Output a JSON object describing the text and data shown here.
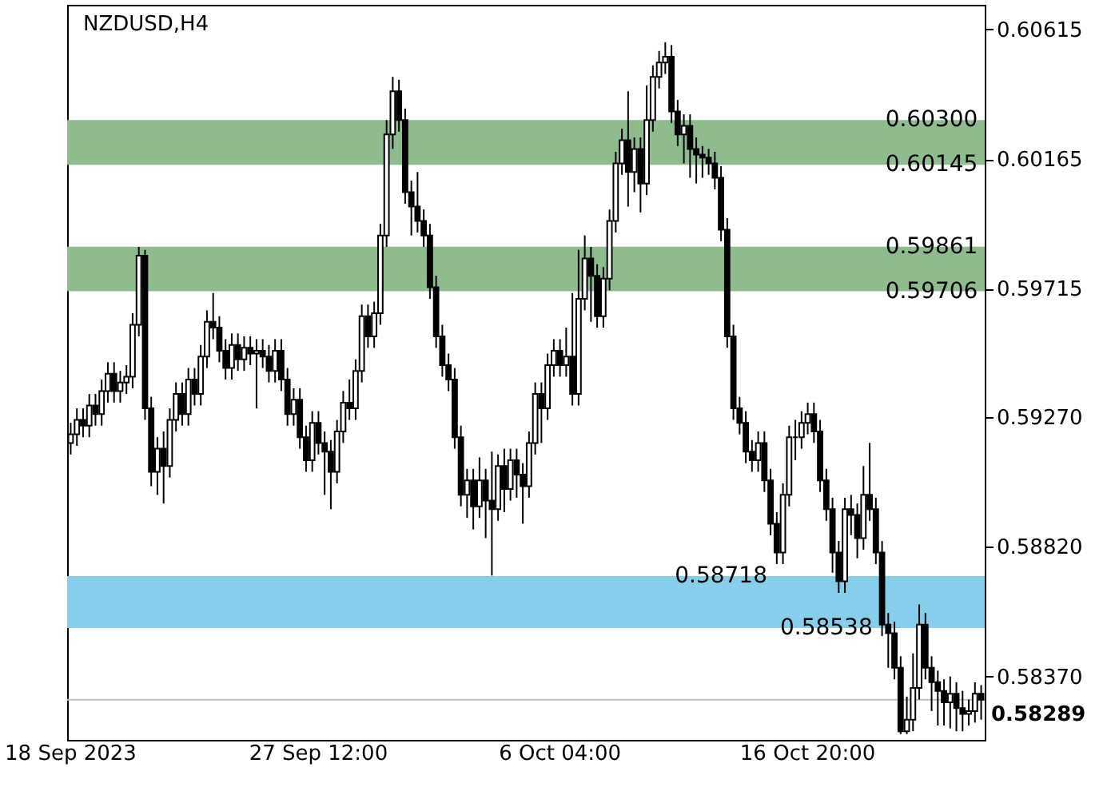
{
  "chart_data": {
    "type": "candlestick",
    "title": "NZDUSD,H4",
    "categories": [
      "18 Sep 2023",
      null,
      null,
      null,
      null,
      null,
      null,
      null,
      null,
      null,
      null,
      null,
      null,
      null,
      null,
      null,
      null,
      null,
      null,
      null,
      null,
      null,
      null,
      null,
      null,
      null,
      null,
      null,
      null,
      null,
      null,
      null,
      null,
      null,
      null,
      null,
      null,
      null,
      null,
      null,
      "27 Sep 12:00",
      null,
      null,
      null,
      null,
      null,
      null,
      null,
      null,
      null,
      null,
      null,
      null,
      null,
      null,
      null,
      null,
      null,
      null,
      null,
      null,
      null,
      null,
      null,
      null,
      null,
      null,
      null,
      null,
      null,
      null,
      null,
      null,
      null,
      null,
      null,
      null,
      null,
      null,
      "6 Oct 04:00",
      null,
      null,
      null,
      null,
      null,
      null,
      null,
      null,
      null,
      null,
      null,
      null,
      null,
      null,
      null,
      null,
      null,
      null,
      null,
      null,
      null,
      null,
      null,
      null,
      null,
      null,
      null,
      null,
      null,
      null,
      null,
      null,
      null,
      null,
      null,
      null,
      null,
      null,
      null,
      "16 Oct 20:00",
      null,
      null,
      null,
      null,
      null,
      null,
      null,
      null,
      null,
      null,
      null,
      null,
      null,
      null,
      null,
      null,
      null,
      null,
      null,
      null,
      null,
      null,
      null,
      null,
      null,
      null,
      null,
      null
    ],
    "ohlc": [
      [
        0.5918,
        0.5925,
        0.5914,
        0.5921
      ],
      [
        0.5921,
        0.593,
        0.5917,
        0.5926
      ],
      [
        0.5926,
        0.593,
        0.592,
        0.5924
      ],
      [
        0.5924,
        0.5935,
        0.592,
        0.5931
      ],
      [
        0.5931,
        0.5935,
        0.5924,
        0.5928
      ],
      [
        0.5928,
        0.594,
        0.5924,
        0.5936
      ],
      [
        0.5936,
        0.5946,
        0.5932,
        0.5942
      ],
      [
        0.5942,
        0.5946,
        0.5932,
        0.5936
      ],
      [
        0.5936,
        0.5943,
        0.5932,
        0.5939
      ],
      [
        0.5939,
        0.5945,
        0.5935,
        0.5941
      ],
      [
        0.5941,
        0.5963,
        0.5937,
        0.5959
      ],
      [
        0.5959,
        0.5986,
        0.5955,
        0.5983
      ],
      [
        0.5983,
        0.5985,
        0.5926,
        0.593
      ],
      [
        0.593,
        0.5934,
        0.5903,
        0.5908
      ],
      [
        0.5908,
        0.592,
        0.59,
        0.5916
      ],
      [
        0.5916,
        0.5922,
        0.5897,
        0.591
      ],
      [
        0.591,
        0.593,
        0.5906,
        0.5926
      ],
      [
        0.5926,
        0.5939,
        0.5922,
        0.5935
      ],
      [
        0.5935,
        0.5939,
        0.5924,
        0.5928
      ],
      [
        0.5928,
        0.5944,
        0.5924,
        0.594
      ],
      [
        0.594,
        0.5944,
        0.5931,
        0.5935
      ],
      [
        0.5935,
        0.5952,
        0.5931,
        0.5948
      ],
      [
        0.5948,
        0.5964,
        0.5944,
        0.596
      ],
      [
        0.596,
        0.597,
        0.5954,
        0.5958
      ],
      [
        0.5958,
        0.5962,
        0.5946,
        0.595
      ],
      [
        0.595,
        0.5954,
        0.594,
        0.5944
      ],
      [
        0.5944,
        0.5956,
        0.594,
        0.5952
      ],
      [
        0.5952,
        0.5956,
        0.5943,
        0.5947
      ],
      [
        0.5947,
        0.5955,
        0.5943,
        0.5951
      ],
      [
        0.5951,
        0.5955,
        0.5945,
        0.5949
      ],
      [
        0.5949,
        0.5954,
        0.593,
        0.595
      ],
      [
        0.595,
        0.5954,
        0.5944,
        0.5948
      ],
      [
        0.5948,
        0.5952,
        0.5939,
        0.5943
      ],
      [
        0.5943,
        0.5954,
        0.5939,
        0.595
      ],
      [
        0.595,
        0.5954,
        0.5936,
        0.594
      ],
      [
        0.594,
        0.5944,
        0.5924,
        0.5928
      ],
      [
        0.5928,
        0.5937,
        0.5924,
        0.5933
      ],
      [
        0.5933,
        0.5937,
        0.5916,
        0.592
      ],
      [
        0.592,
        0.5924,
        0.5908,
        0.5912
      ],
      [
        0.5912,
        0.5929,
        0.5908,
        0.5925
      ],
      [
        0.5925,
        0.5929,
        0.5914,
        0.5918
      ],
      [
        0.5918,
        0.5922,
        0.59,
        0.5915
      ],
      [
        0.5915,
        0.5919,
        0.5895,
        0.5908
      ],
      [
        0.5908,
        0.5926,
        0.5904,
        0.5922
      ],
      [
        0.5922,
        0.5936,
        0.5918,
        0.5932
      ],
      [
        0.5932,
        0.594,
        0.5926,
        0.593
      ],
      [
        0.593,
        0.5947,
        0.5926,
        0.5943
      ],
      [
        0.5943,
        0.5966,
        0.5939,
        0.5962
      ],
      [
        0.5962,
        0.5966,
        0.5951,
        0.5955
      ],
      [
        0.5955,
        0.5967,
        0.5951,
        0.5963
      ],
      [
        0.5963,
        0.5994,
        0.5959,
        0.599
      ],
      [
        0.599,
        0.603,
        0.5986,
        0.6025
      ],
      [
        0.6025,
        0.6045,
        0.602,
        0.604
      ],
      [
        0.604,
        0.6044,
        0.6026,
        0.603
      ],
      [
        0.603,
        0.6034,
        0.6001,
        0.6005
      ],
      [
        0.6005,
        0.6009,
        0.599,
        0.6
      ],
      [
        0.6,
        0.6012,
        0.5991,
        0.5995
      ],
      [
        0.5995,
        0.5999,
        0.5986,
        0.599
      ],
      [
        0.599,
        0.5994,
        0.5968,
        0.5972
      ],
      [
        0.5972,
        0.5976,
        0.5951,
        0.5955
      ],
      [
        0.5955,
        0.5959,
        0.5941,
        0.5945
      ],
      [
        0.5945,
        0.5949,
        0.5936,
        0.594
      ],
      [
        0.594,
        0.5944,
        0.5916,
        0.592
      ],
      [
        0.592,
        0.5924,
        0.5896,
        0.59
      ],
      [
        0.59,
        0.5909,
        0.5892,
        0.5905
      ],
      [
        0.5905,
        0.5909,
        0.5888,
        0.5896
      ],
      [
        0.5896,
        0.5913,
        0.5892,
        0.5905
      ],
      [
        0.5905,
        0.5909,
        0.5885,
        0.5898
      ],
      [
        0.5898,
        0.5915,
        0.5872,
        0.5895
      ],
      [
        0.5895,
        0.5914,
        0.5891,
        0.591
      ],
      [
        0.591,
        0.5916,
        0.5894,
        0.5902
      ],
      [
        0.5902,
        0.5916,
        0.5898,
        0.5912
      ],
      [
        0.5912,
        0.5916,
        0.5899,
        0.5907
      ],
      [
        0.5907,
        0.5911,
        0.589,
        0.5903
      ],
      [
        0.5903,
        0.5922,
        0.5899,
        0.5918
      ],
      [
        0.5918,
        0.5939,
        0.5914,
        0.5935
      ],
      [
        0.5935,
        0.5939,
        0.5918,
        0.593
      ],
      [
        0.593,
        0.5949,
        0.5926,
        0.5945
      ],
      [
        0.5945,
        0.5954,
        0.5941,
        0.595
      ],
      [
        0.595,
        0.5954,
        0.5941,
        0.5945
      ],
      [
        0.5945,
        0.5958,
        0.5941,
        0.5948
      ],
      [
        0.5948,
        0.597,
        0.5931,
        0.5935
      ],
      [
        0.5935,
        0.5985,
        0.5931,
        0.5968
      ],
      [
        0.5968,
        0.599,
        0.5964,
        0.5982
      ],
      [
        0.5982,
        0.5986,
        0.596,
        0.5976
      ],
      [
        0.5976,
        0.598,
        0.5958,
        0.5962
      ],
      [
        0.5962,
        0.5979,
        0.5958,
        0.5975
      ],
      [
        0.5975,
        0.5999,
        0.5971,
        0.5995
      ],
      [
        0.5995,
        0.6019,
        0.5991,
        0.6015
      ],
      [
        0.6015,
        0.6027,
        0.6011,
        0.6023
      ],
      [
        0.6023,
        0.604,
        0.6,
        0.6012
      ],
      [
        0.6012,
        0.6024,
        0.6005,
        0.602
      ],
      [
        0.602,
        0.6024,
        0.5998,
        0.6008
      ],
      [
        0.6008,
        0.6042,
        0.6004,
        0.603
      ],
      [
        0.603,
        0.6049,
        0.6026,
        0.6045
      ],
      [
        0.6045,
        0.6054,
        0.6041,
        0.605
      ],
      [
        0.605,
        0.6057,
        0.6046,
        0.6052
      ],
      [
        0.6052,
        0.6056,
        0.6029,
        0.6033
      ],
      [
        0.6033,
        0.6037,
        0.6021,
        0.6025
      ],
      [
        0.6025,
        0.6032,
        0.6015,
        0.6028
      ],
      [
        0.6028,
        0.6032,
        0.601,
        0.602
      ],
      [
        0.602,
        0.6024,
        0.6008,
        0.6018
      ],
      [
        0.6018,
        0.6021,
        0.601,
        0.6017
      ],
      [
        0.6017,
        0.602,
        0.6011,
        0.6015
      ],
      [
        0.6015,
        0.6019,
        0.6006,
        0.601
      ],
      [
        0.601,
        0.6014,
        0.5988,
        0.5992
      ],
      [
        0.5992,
        0.5996,
        0.5951,
        0.5955
      ],
      [
        0.5955,
        0.5959,
        0.5926,
        0.593
      ],
      [
        0.593,
        0.5934,
        0.5921,
        0.5925
      ],
      [
        0.5925,
        0.5929,
        0.5911,
        0.5915
      ],
      [
        0.5915,
        0.5919,
        0.5908,
        0.5912
      ],
      [
        0.5912,
        0.5922,
        0.5908,
        0.5918
      ],
      [
        0.5918,
        0.5922,
        0.5901,
        0.5905
      ],
      [
        0.5905,
        0.5909,
        0.5886,
        0.589
      ],
      [
        0.589,
        0.5894,
        0.5876,
        0.588
      ],
      [
        0.588,
        0.5904,
        0.5876,
        0.59
      ],
      [
        0.59,
        0.5924,
        0.5896,
        0.592
      ],
      [
        0.592,
        0.5926,
        0.5912,
        0.592
      ],
      [
        0.592,
        0.5929,
        0.5916,
        0.5925
      ],
      [
        0.5925,
        0.5932,
        0.5921,
        0.5928
      ],
      [
        0.5928,
        0.5932,
        0.5918,
        0.5922
      ],
      [
        0.5922,
        0.5926,
        0.5901,
        0.5905
      ],
      [
        0.5905,
        0.5909,
        0.5891,
        0.5895
      ],
      [
        0.5895,
        0.5899,
        0.5873,
        0.588
      ],
      [
        0.588,
        0.5884,
        0.5866,
        0.587
      ],
      [
        0.587,
        0.5899,
        0.5866,
        0.5895
      ],
      [
        0.5895,
        0.59,
        0.5886,
        0.5893
      ],
      [
        0.5893,
        0.5897,
        0.5878,
        0.5885
      ],
      [
        0.5885,
        0.591,
        0.5881,
        0.59
      ],
      [
        0.59,
        0.5918,
        0.5891,
        0.5895
      ],
      [
        0.5895,
        0.5899,
        0.5876,
        0.588
      ],
      [
        0.588,
        0.5884,
        0.5851,
        0.5855
      ],
      [
        0.5855,
        0.5859,
        0.584,
        0.5852
      ],
      [
        0.5852,
        0.5856,
        0.5836,
        0.584
      ],
      [
        0.584,
        0.5844,
        0.5817,
        0.5818
      ],
      [
        0.5818,
        0.583,
        0.5817,
        0.5822
      ],
      [
        0.5822,
        0.5845,
        0.5818,
        0.5833
      ],
      [
        0.5833,
        0.5862,
        0.5829,
        0.5855
      ],
      [
        0.5855,
        0.5859,
        0.5836,
        0.584
      ],
      [
        0.584,
        0.5844,
        0.5825,
        0.5835
      ],
      [
        0.5835,
        0.5839,
        0.582,
        0.5832
      ],
      [
        0.5832,
        0.5836,
        0.582,
        0.5828
      ],
      [
        0.5828,
        0.5837,
        0.5819,
        0.5831
      ],
      [
        0.5831,
        0.5835,
        0.5818,
        0.5826
      ],
      [
        0.5826,
        0.5832,
        0.5818,
        0.5824
      ],
      [
        0.5824,
        0.5829,
        0.582,
        0.5825
      ],
      [
        0.5825,
        0.5835,
        0.5821,
        0.5831
      ],
      [
        0.5831,
        0.5834,
        0.5822,
        0.58289
      ]
    ],
    "ylim": [
      0.5815,
      0.607
    ],
    "yticks": [
      {
        "value": 0.5837,
        "label": "0.58370"
      },
      {
        "value": 0.5882,
        "label": "0.58820"
      },
      {
        "value": 0.5927,
        "label": "0.59270"
      },
      0.59715,
      0.60165,
      0.60615
    ],
    "ref_lines": [
      {
        "axis": "y",
        "value": 0.58289,
        "label": "0.58289",
        "color": "#c0c0c0"
      }
    ],
    "bands": [
      {
        "axis": "y",
        "from": 0.60145,
        "to": 0.603,
        "color": "#8fbc8f"
      },
      {
        "axis": "y",
        "from": 0.59706,
        "to": 0.59861,
        "color": "#8fbc8f"
      },
      {
        "axis": "y",
        "from": 0.58538,
        "to": 0.58718,
        "color": "#87ceeb"
      }
    ],
    "annotations": [
      {
        "text": "0.60300",
        "y": 0.603
      },
      {
        "text": "0.60145",
        "y": 0.60145
      },
      {
        "text": "0.59861",
        "y": 0.59861
      },
      {
        "text": "0.59706",
        "y": 0.59706
      },
      {
        "text": "0.58718",
        "y": 0.58718
      },
      {
        "text": "0.58538",
        "y": 0.58538
      }
    ]
  }
}
